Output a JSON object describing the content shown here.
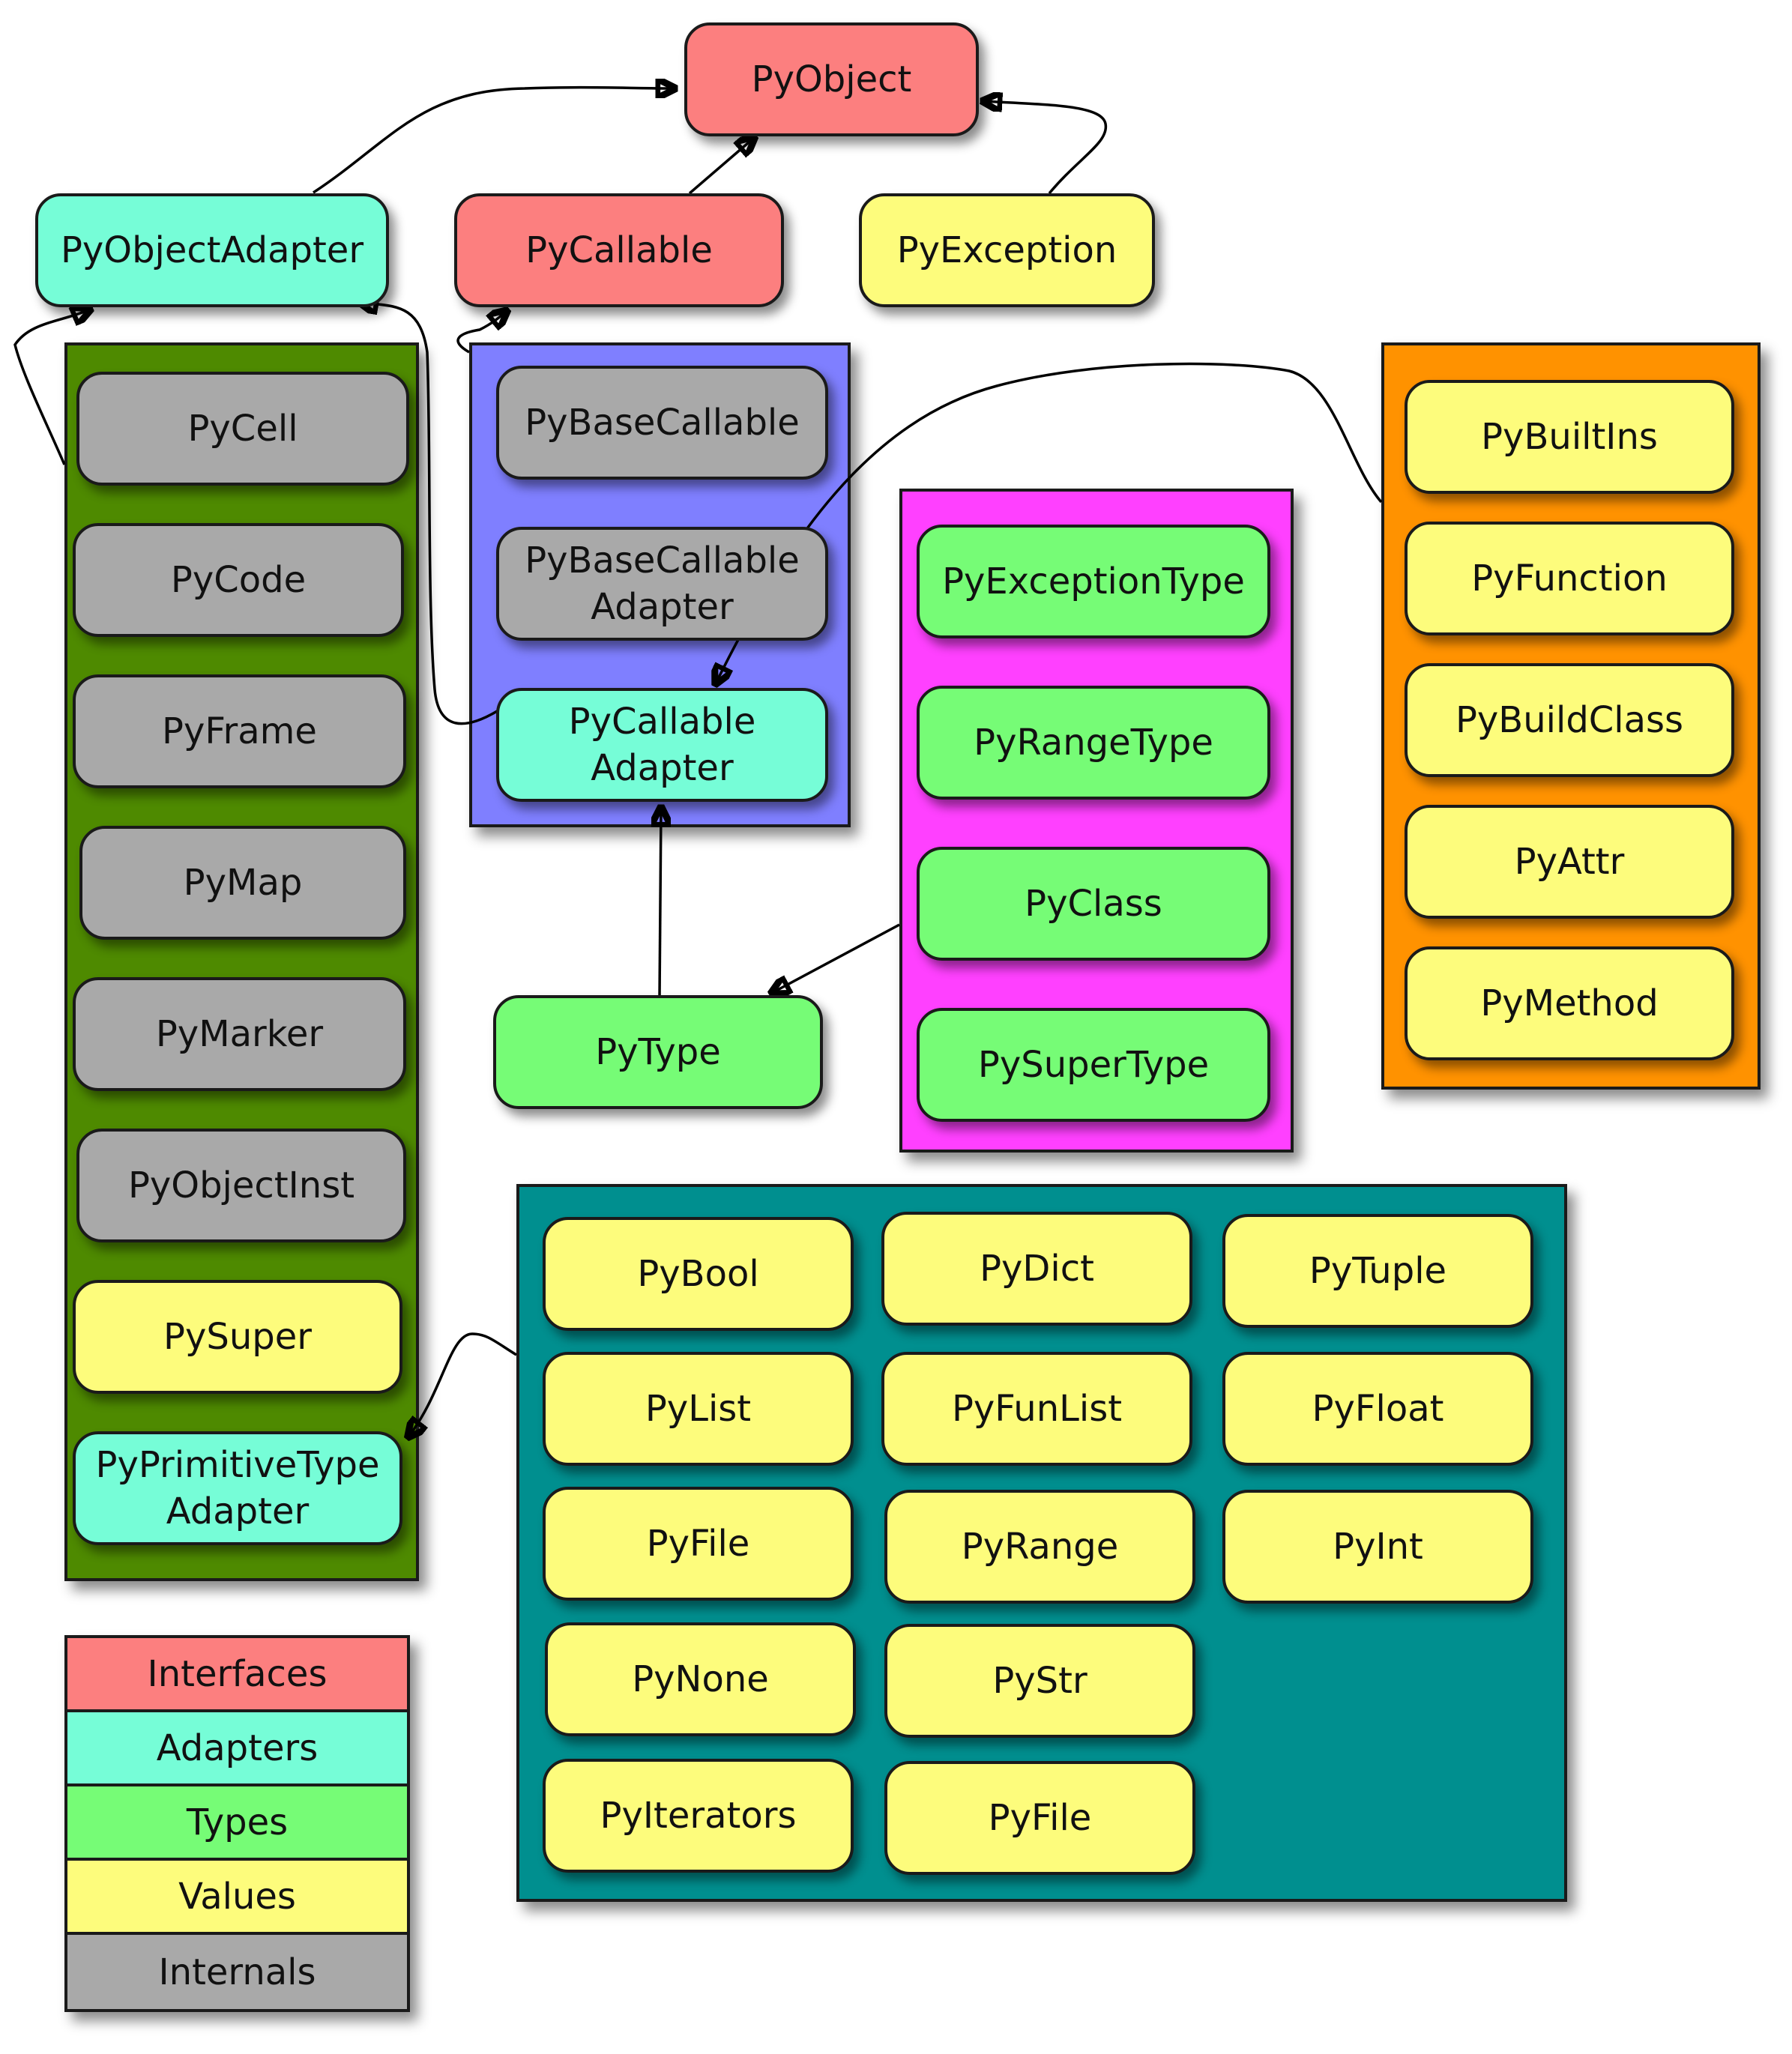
{
  "colors": {
    "interface": "#fc7f7f",
    "adapter": "#76fdd7",
    "type": "#76fc76",
    "value": "#fdfc7c",
    "internal": "#a9a9a9",
    "group_internals": "#4e8a00",
    "group_callables": "#7f7fff",
    "group_types": "#ff40ff",
    "group_builtins": "#ff9200",
    "group_values": "#008f8f"
  },
  "nodes": {
    "pyobject": "PyObject",
    "pyobjectadapter": "PyObjectAdapter",
    "pycallable": "PyCallable",
    "pyexception": "PyException",
    "pycell": "PyCell",
    "pycode": "PyCode",
    "pyframe": "PyFrame",
    "pymap": "PyMap",
    "pymarker": "PyMarker",
    "pyobjectinst": "PyObjectInst",
    "pysuper": "PySuper",
    "pyprimitivetypeadapter": "PyPrimitiveType\nAdapter",
    "pybasecallable": "PyBaseCallable",
    "pybasecallableadapter": "PyBaseCallable\nAdapter",
    "pycallableadapter": "PyCallable\nAdapter",
    "pytype": "PyType",
    "pyexceptiontype": "PyExceptionType",
    "pyrangetype": "PyRangeType",
    "pyclass": "PyClass",
    "pysupertype": "PySuperType",
    "pybuiltins": "PyBuiltIns",
    "pyfunction": "PyFunction",
    "pybuildclass": "PyBuildClass",
    "pyattr": "PyAttr",
    "pymethod": "PyMethod",
    "pybool": "PyBool",
    "pydict": "PyDict",
    "pytuple": "PyTuple",
    "pylist": "PyList",
    "pyfunlist": "PyFunList",
    "pyfloat": "PyFloat",
    "pyfile_1": "PyFile",
    "pyrange": "PyRange",
    "pyint": "PyInt",
    "pynone": "PyNone",
    "pystr": "PyStr",
    "pyiterators": "PyIterators",
    "pyfile_2": "PyFile"
  },
  "legend": [
    {
      "label": "Interfaces",
      "color": "#fc7f7f"
    },
    {
      "label": "Adapters",
      "color": "#76fdd7"
    },
    {
      "label": "Types",
      "color": "#76fc76"
    },
    {
      "label": "Values",
      "color": "#fdfc7c"
    },
    {
      "label": "Internals",
      "color": "#a9a9a9"
    }
  ]
}
